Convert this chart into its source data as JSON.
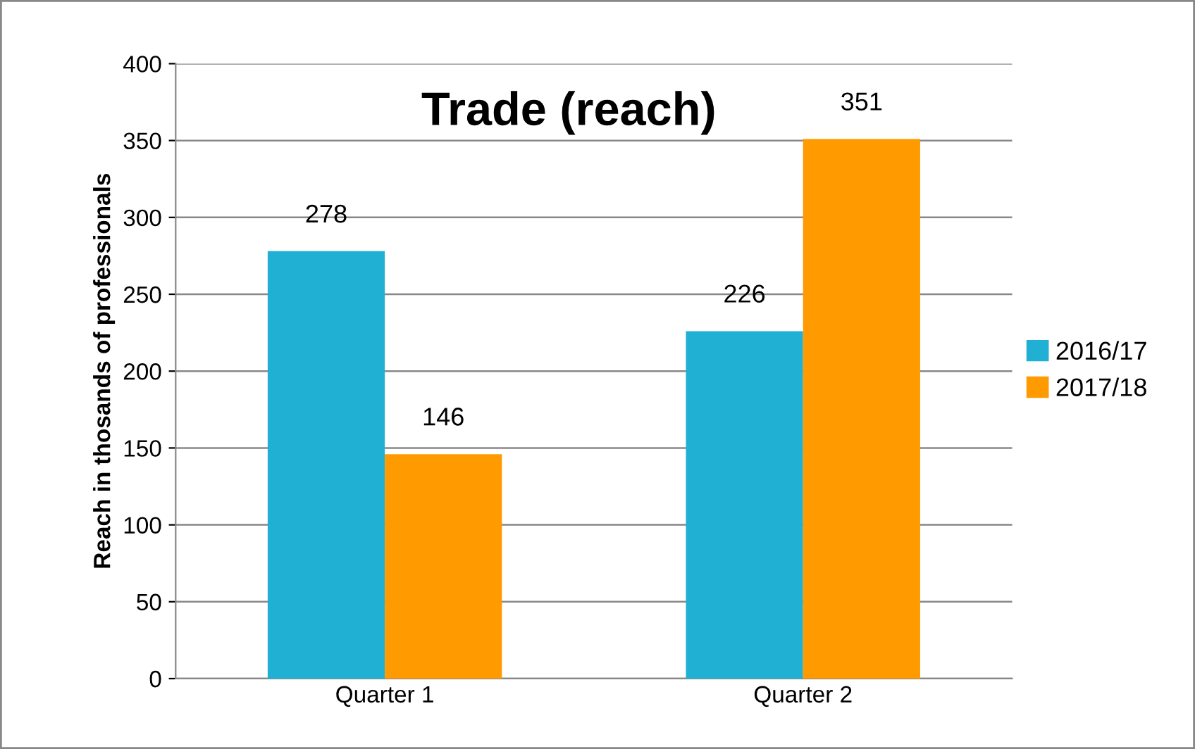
{
  "chart_data": {
    "type": "bar",
    "title": "Trade (reach)",
    "ylabel": "Reach in thosands of professionals",
    "categories": [
      "Quarter 1",
      "Quarter 2"
    ],
    "series": [
      {
        "name": "2016/17",
        "color": "#1fb0d4",
        "values": [
          278,
          226
        ]
      },
      {
        "name": "2017/18",
        "color": "#ff9a00",
        "values": [
          146,
          351
        ]
      }
    ],
    "ylim": [
      0,
      400
    ],
    "yticks": [
      0,
      50,
      100,
      150,
      200,
      250,
      300,
      350,
      400
    ],
    "grid": "y",
    "legend": "right",
    "data_labels": true
  }
}
